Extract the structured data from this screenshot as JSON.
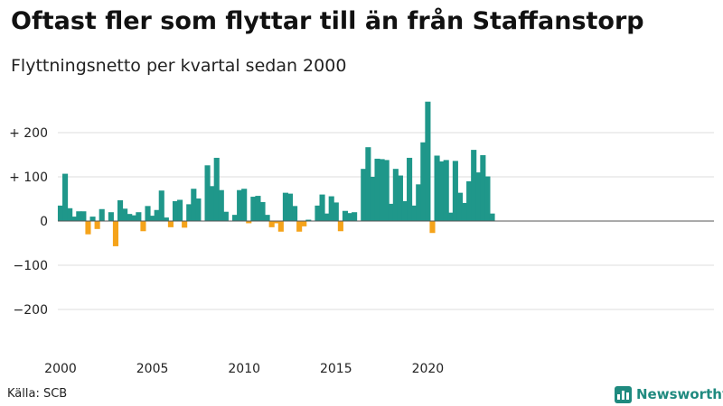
{
  "title": "Oftast fler som flyttar till än från Staffanstorp",
  "subtitle": "Flyttningsnetto per kvartal sedan 2000",
  "source": "Källa: SCB",
  "brand": "Newsworthy",
  "colors": {
    "positive": "#1f978a",
    "negative": "#f5a31a",
    "grid": "#dddddd",
    "zero": "#555555",
    "brand": "#1f8a7f"
  },
  "chart_data": {
    "type": "bar",
    "xlabel": "",
    "ylabel": "",
    "ylim": [
      -250,
      280
    ],
    "grid": true,
    "y_ticks": [
      {
        "value": 200,
        "label": "+ 200"
      },
      {
        "value": 100,
        "label": "+ 100"
      },
      {
        "value": 0,
        "label": "0"
      },
      {
        "value": -100,
        "label": "−100"
      },
      {
        "value": -200,
        "label": "−200"
      }
    ],
    "x_ticks": [
      "2000",
      "2005",
      "2010",
      "2015",
      "2020"
    ],
    "x_tick_years": [
      2000,
      2005,
      2010,
      2015,
      2020
    ],
    "start_year": 2000,
    "values": [
      35,
      107,
      29,
      10,
      22,
      22,
      -30,
      10,
      -18,
      27,
      0,
      20,
      -57,
      47,
      28,
      16,
      13,
      20,
      -23,
      34,
      12,
      25,
      69,
      8,
      -14,
      45,
      48,
      -15,
      38,
      73,
      51,
      0,
      126,
      79,
      143,
      70,
      21,
      0,
      14,
      70,
      73,
      -5,
      55,
      57,
      43,
      14,
      -14,
      -5,
      -24,
      64,
      62,
      34,
      -24,
      -12,
      3,
      0,
      35,
      60,
      17,
      56,
      42,
      -23,
      23,
      18,
      20,
      0,
      118,
      167,
      100,
      141,
      140,
      138,
      39,
      118,
      103,
      45,
      143,
      35,
      83,
      178,
      270,
      -27,
      148,
      135,
      138,
      19,
      136,
      64,
      41,
      90,
      161,
      110,
      149,
      101,
      17
    ]
  }
}
